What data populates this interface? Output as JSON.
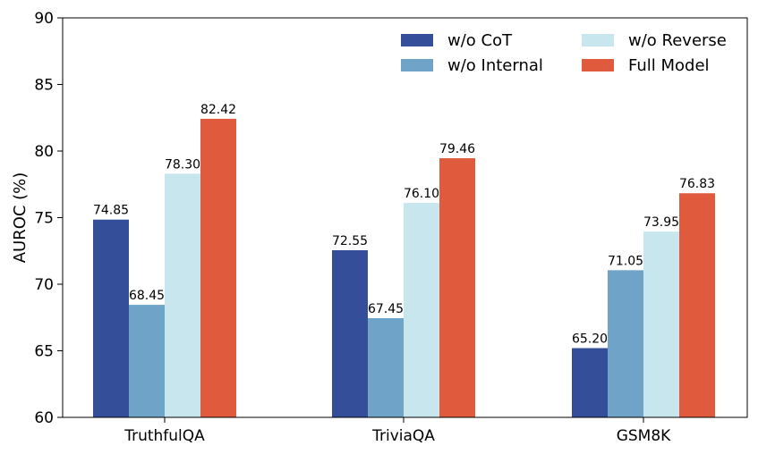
{
  "chart_data": {
    "type": "bar",
    "title": "",
    "xlabel": "",
    "ylabel": "AUROC (%)",
    "ylim": [
      60,
      90
    ],
    "yticks": [
      60,
      65,
      70,
      75,
      80,
      85,
      90
    ],
    "categories": [
      "TruthfulQA",
      "TriviaQA",
      "GSM8K"
    ],
    "series": [
      {
        "name": "w/o CoT",
        "color": "#344e99",
        "values": [
          74.85,
          72.55,
          65.2
        ],
        "labels": [
          "74.85",
          "72.55",
          "65.20"
        ]
      },
      {
        "name": "w/o Internal",
        "color": "#6fa3c7",
        "values": [
          68.45,
          67.45,
          71.05
        ],
        "labels": [
          "68.45",
          "67.45",
          "71.05"
        ]
      },
      {
        "name": "w/o Reverse",
        "color": "#c8e6ee",
        "values": [
          78.3,
          76.1,
          73.95
        ],
        "labels": [
          "78.30",
          "76.10",
          "73.95"
        ]
      },
      {
        "name": "Full Model",
        "color": "#e05a3e",
        "values": [
          82.42,
          79.46,
          76.83
        ],
        "labels": [
          "82.42",
          "79.46",
          "76.83"
        ]
      }
    ],
    "legend_position": "top-right",
    "legend_columns": 2,
    "grid": false
  }
}
